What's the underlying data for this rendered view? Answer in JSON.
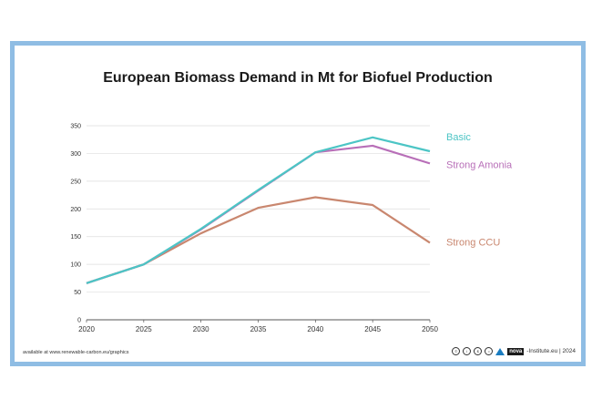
{
  "footer": {
    "source": "available at www.renewable-carbon.eu/graphics",
    "logo_text": "nova",
    "credit": "-Institute.eu | 2024",
    "icons": [
      "cc-icon",
      "by-icon",
      "nc-icon",
      "nd-icon",
      "nova-logo-icon"
    ]
  },
  "chart_data": {
    "type": "line",
    "title": "European Biomass Demand in Mt for Biofuel Production",
    "xlabel": "",
    "ylabel": "",
    "x": [
      2020,
      2025,
      2030,
      2035,
      2040,
      2045,
      2050
    ],
    "xlim": [
      2020,
      2050
    ],
    "ylim": [
      0,
      350
    ],
    "yticks": [
      0,
      50,
      100,
      150,
      200,
      250,
      300,
      350
    ],
    "grid": true,
    "legend": "inline-right",
    "series": [
      {
        "name": "Basic",
        "color": "#4cc5c5",
        "values": [
          66,
          100,
          164,
          234,
          302,
          329,
          304
        ]
      },
      {
        "name": "Strong Amonia",
        "color": "#b86fb8",
        "values": [
          66,
          100,
          163,
          233,
          302,
          314,
          282
        ]
      },
      {
        "name": "Strong CCU",
        "color": "#c9876f",
        "values": [
          66,
          100,
          156,
          202,
          221,
          207,
          139
        ]
      }
    ]
  }
}
